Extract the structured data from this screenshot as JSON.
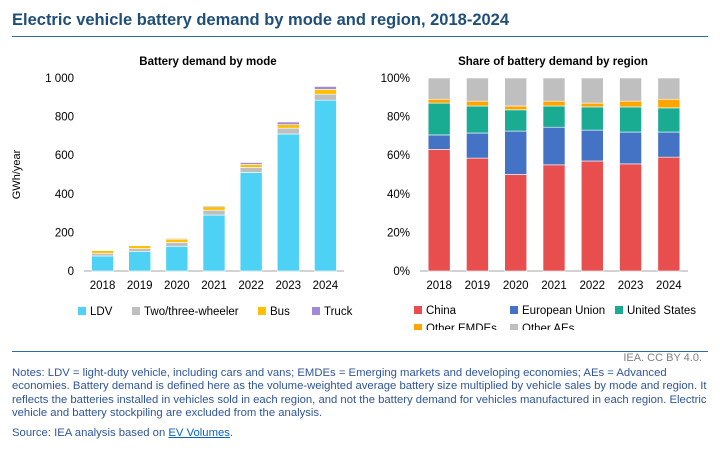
{
  "figure": {
    "title": "Electric vehicle battery demand by mode and region, 2018-2024",
    "credit": "IEA. CC BY 4.0.",
    "notes": "Notes: LDV = light-duty vehicle, including cars and vans; EMDEs = Emerging markets and developing economies; AEs = Advanced economies. Battery demand is defined here as the volume-weighted average battery size multiplied by vehicle sales by mode and region. It reflects the batteries installed in vehicles sold in each region, and not the battery demand for vehicles manufactured in each region. Electric vehicle and battery stockpiling are excluded from the analysis.",
    "source_prefix": "Source: IEA analysis based on ",
    "source_link": "EV Volumes",
    "source_suffix": "."
  },
  "chart_data": [
    {
      "type": "bar",
      "stacked": true,
      "title": "Battery demand by mode",
      "ylabel": "GWh/year",
      "xlabel": "",
      "categories": [
        "2018",
        "2019",
        "2020",
        "2021",
        "2022",
        "2023",
        "2024"
      ],
      "ylim": [
        0,
        1000
      ],
      "yticks": [
        0,
        200,
        400,
        600,
        800,
        1000
      ],
      "ytick_labels": [
        "0",
        "200",
        "400",
        "600",
        "800",
        "1 000"
      ],
      "grid": false,
      "legend_position": "bottom",
      "series": [
        {
          "name": "LDV",
          "color": "#4dd2f6",
          "values": [
            78,
            100,
            128,
            290,
            510,
            710,
            885
          ]
        },
        {
          "name": "Two/three-wheeler",
          "color": "#bfbfbf",
          "values": [
            14,
            16,
            20,
            25,
            27,
            30,
            31
          ]
        },
        {
          "name": "Bus",
          "color": "#ffc000",
          "values": [
            14,
            15,
            17,
            18,
            15,
            18,
            25
          ]
        },
        {
          "name": "Truck",
          "color": "#a08ad8",
          "values": [
            2,
            3,
            4,
            5,
            10,
            14,
            15
          ]
        }
      ]
    },
    {
      "type": "bar",
      "stacked": true,
      "title": "Share of battery demand by region",
      "ylabel": "",
      "xlabel": "",
      "categories": [
        "2018",
        "2019",
        "2020",
        "2021",
        "2022",
        "2023",
        "2024"
      ],
      "ylim": [
        0,
        100
      ],
      "yticks": [
        0,
        20,
        40,
        60,
        80,
        100
      ],
      "ytick_labels": [
        "0%",
        "20%",
        "40%",
        "60%",
        "80%",
        "100%"
      ],
      "grid": false,
      "legend_position": "bottom",
      "series": [
        {
          "name": "China",
          "color": "#e84e4e",
          "values": [
            63,
            58.5,
            50,
            55,
            57,
            55.5,
            59
          ]
        },
        {
          "name": "European Union",
          "color": "#4472c4",
          "values": [
            7.5,
            13,
            22.5,
            19.5,
            16,
            16.5,
            13
          ]
        },
        {
          "name": "United States",
          "color": "#1aab93",
          "values": [
            16.5,
            14,
            11,
            11,
            12,
            13,
            12.5
          ]
        },
        {
          "name": "Other EMDEs",
          "color": "#ffa500",
          "values": [
            2,
            2.5,
            2,
            2.5,
            2,
            3,
            4.5
          ]
        },
        {
          "name": "Other AEs",
          "color": "#bfbfbf",
          "values": [
            11,
            12,
            14.5,
            12,
            13,
            12,
            11
          ]
        }
      ]
    }
  ]
}
